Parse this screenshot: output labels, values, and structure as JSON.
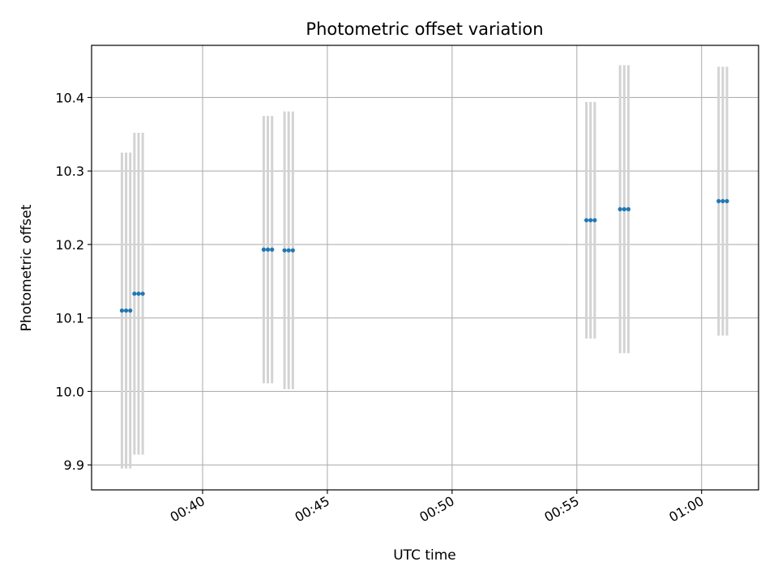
{
  "chart_data": {
    "type": "scatter",
    "title": "Photometric offset variation",
    "xlabel": "UTC time",
    "ylabel": "Photometric offset",
    "x_axis_type": "time",
    "xlim": [
      "00:35:33",
      "01:02:17"
    ],
    "ylim": [
      9.866,
      10.471
    ],
    "grid": true,
    "x_ticks": [
      "00:40",
      "00:45",
      "00:50",
      "00:55",
      "01:00"
    ],
    "x_tick_labels_rotated": true,
    "y_ticks": [
      9.9,
      10.0,
      10.1,
      10.2,
      10.3,
      10.4
    ],
    "y_tick_labels": [
      "9.9",
      "10.0",
      "10.1",
      "10.2",
      "10.3",
      "10.4"
    ],
    "colors": {
      "points": "#1f77b4",
      "error_bars": "#d3d3d3",
      "grid": "#b0b0b0"
    },
    "series": [
      {
        "points": [
          {
            "x": "00:36:46",
            "y": 10.11,
            "yerr": 0.215
          },
          {
            "x": "00:36:56",
            "y": 10.11,
            "yerr": 0.215
          },
          {
            "x": "00:37:06",
            "y": 10.11,
            "yerr": 0.215
          },
          {
            "x": "00:37:16",
            "y": 10.133,
            "yerr": 0.219
          },
          {
            "x": "00:37:26",
            "y": 10.133,
            "yerr": 0.219
          },
          {
            "x": "00:37:36",
            "y": 10.133,
            "yerr": 0.219
          },
          {
            "x": "00:42:27",
            "y": 10.193,
            "yerr": 0.182
          },
          {
            "x": "00:42:37",
            "y": 10.193,
            "yerr": 0.182
          },
          {
            "x": "00:42:47",
            "y": 10.193,
            "yerr": 0.182
          },
          {
            "x": "00:43:17",
            "y": 10.192,
            "yerr": 0.189
          },
          {
            "x": "00:43:27",
            "y": 10.192,
            "yerr": 0.189
          },
          {
            "x": "00:43:37",
            "y": 10.192,
            "yerr": 0.189
          },
          {
            "x": "00:55:23",
            "y": 10.233,
            "yerr": 0.161
          },
          {
            "x": "00:55:33",
            "y": 10.233,
            "yerr": 0.161
          },
          {
            "x": "00:55:43",
            "y": 10.233,
            "yerr": 0.161
          },
          {
            "x": "00:56:44",
            "y": 10.248,
            "yerr": 0.196
          },
          {
            "x": "00:56:54",
            "y": 10.248,
            "yerr": 0.196
          },
          {
            "x": "00:57:04",
            "y": 10.248,
            "yerr": 0.196
          },
          {
            "x": "01:00:41",
            "y": 10.259,
            "yerr": 0.183
          },
          {
            "x": "01:00:51",
            "y": 10.259,
            "yerr": 0.183
          },
          {
            "x": "01:01:01",
            "y": 10.259,
            "yerr": 0.183
          }
        ]
      }
    ]
  }
}
